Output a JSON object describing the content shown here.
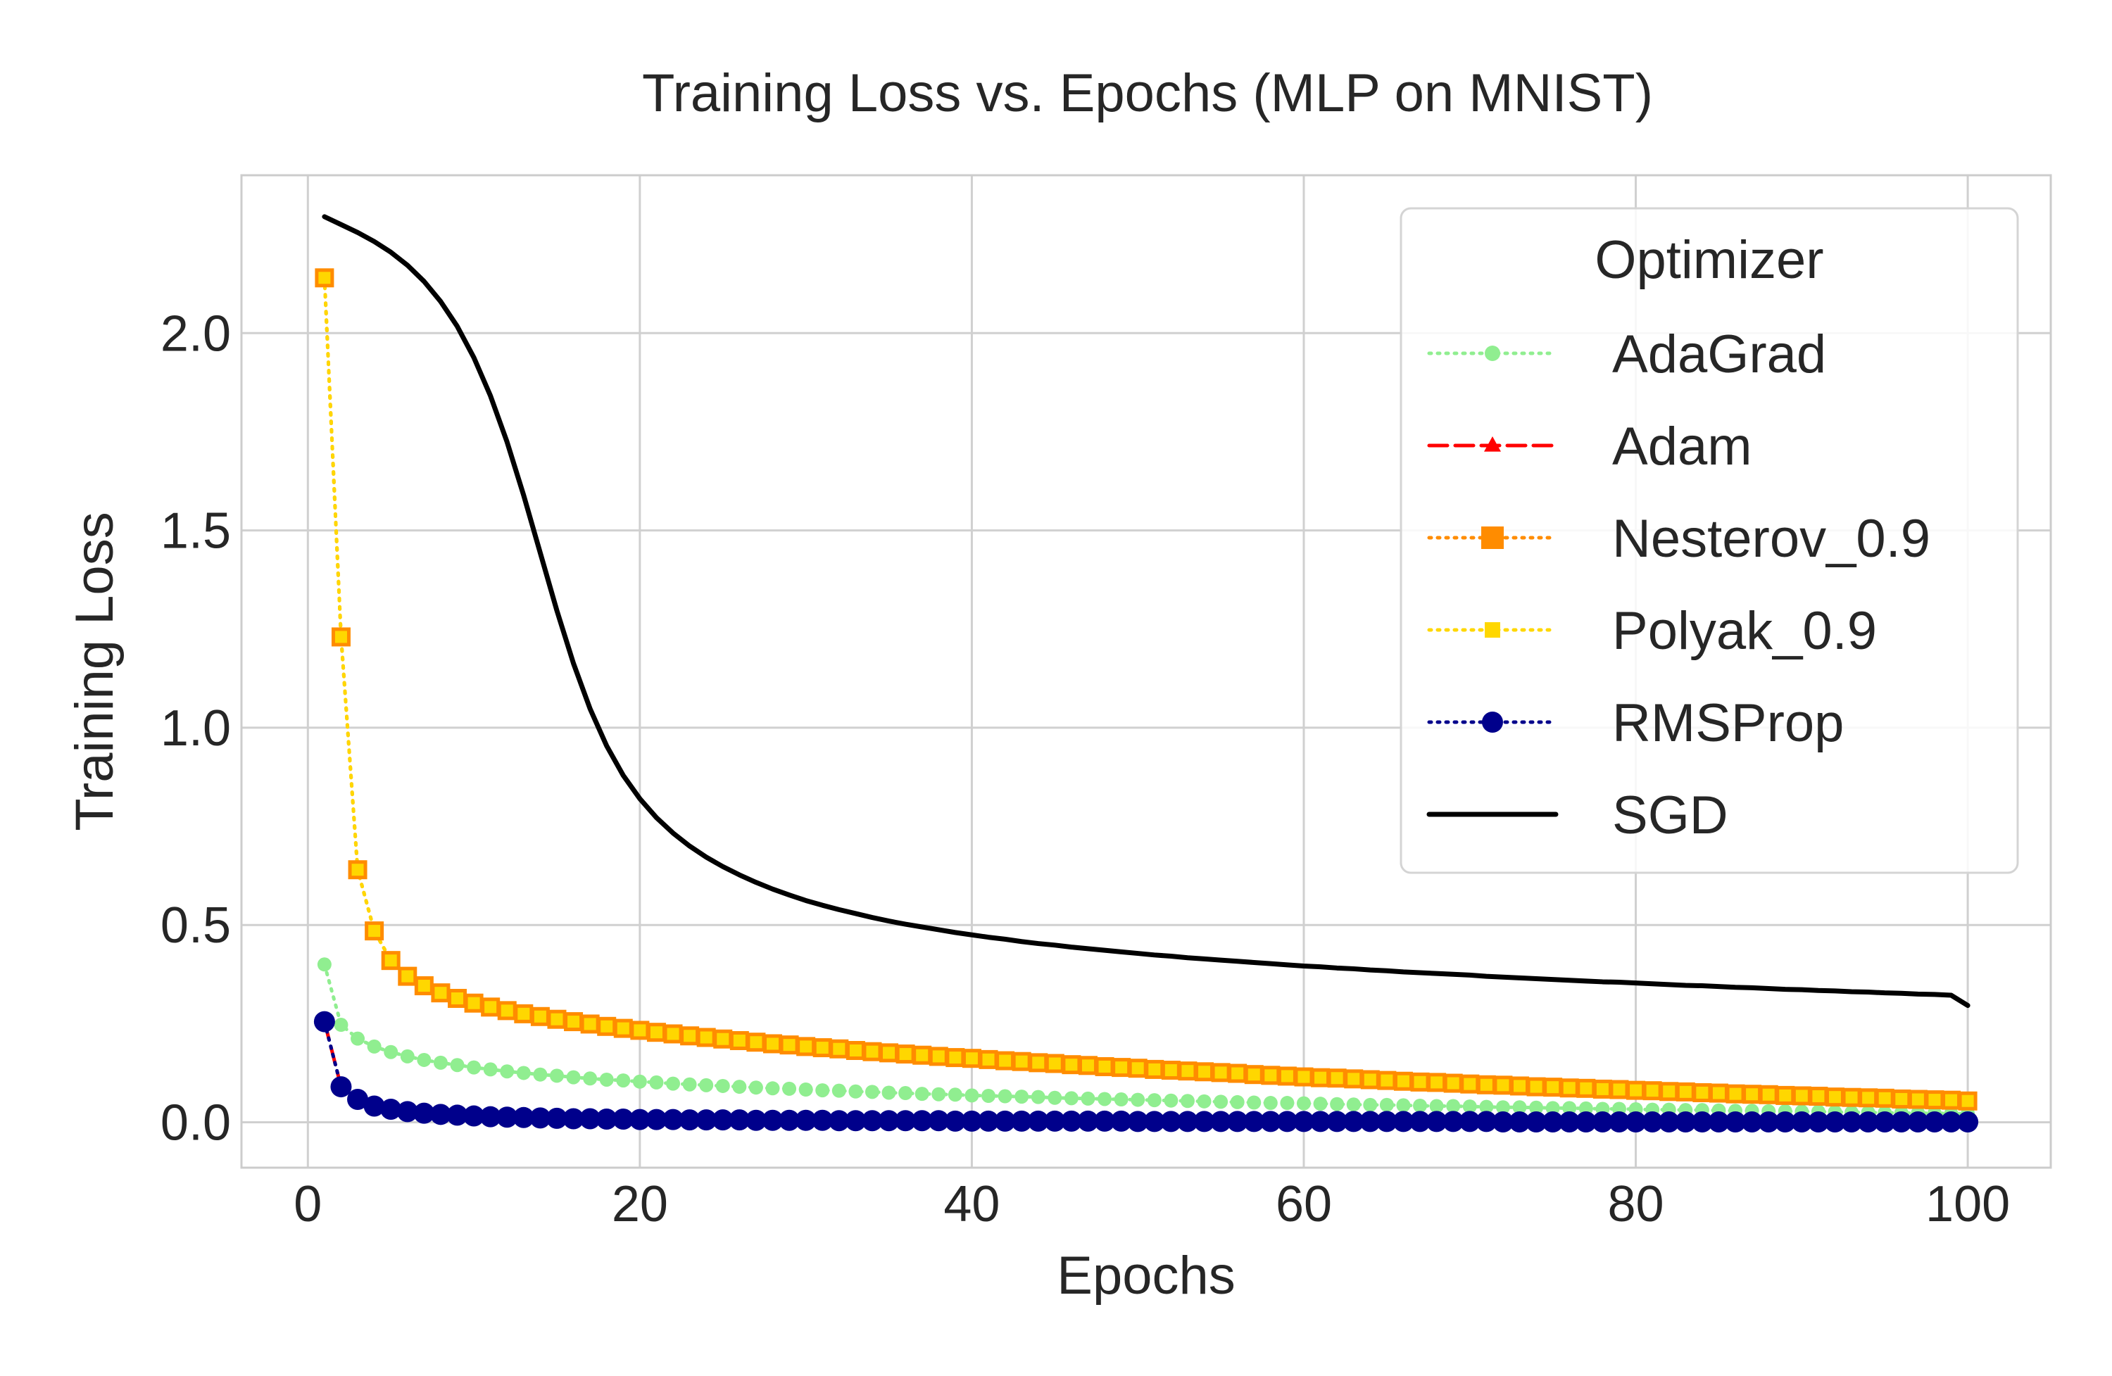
{
  "chart_data": {
    "type": "line",
    "title": "Training Loss vs. Epochs (MLP on MNIST)",
    "xlabel": "Epochs",
    "ylabel": "Training Loss",
    "xlim": [
      -4,
      105
    ],
    "ylim": [
      -0.115,
      2.4
    ],
    "xticks": [
      0,
      20,
      40,
      60,
      80,
      100
    ],
    "yticks": [
      0.0,
      0.5,
      1.0,
      1.5,
      2.0
    ],
    "xtick_labels": [
      "0",
      "20",
      "40",
      "60",
      "80",
      "100"
    ],
    "ytick_labels": [
      "0.0",
      "0.5",
      "1.0",
      "1.5",
      "2.0"
    ],
    "grid": true,
    "legend": {
      "title": "Optimizer",
      "placement": "upper right"
    },
    "x": [
      1,
      2,
      3,
      4,
      5,
      6,
      7,
      8,
      9,
      10,
      11,
      12,
      13,
      14,
      15,
      16,
      17,
      18,
      19,
      20,
      21,
      22,
      23,
      24,
      25,
      26,
      27,
      28,
      29,
      30,
      31,
      32,
      33,
      34,
      35,
      36,
      37,
      38,
      39,
      40,
      41,
      42,
      43,
      44,
      45,
      46,
      47,
      48,
      49,
      50,
      51,
      52,
      53,
      54,
      55,
      56,
      57,
      58,
      59,
      60,
      61,
      62,
      63,
      64,
      65,
      66,
      67,
      68,
      69,
      70,
      71,
      72,
      73,
      74,
      75,
      76,
      77,
      78,
      79,
      80,
      81,
      82,
      83,
      84,
      85,
      86,
      87,
      88,
      89,
      90,
      91,
      92,
      93,
      94,
      95,
      96,
      97,
      98,
      99,
      100
    ],
    "series": [
      {
        "name": "AdaGrad",
        "color": "#90ee90",
        "linestyle": "dotted",
        "marker": "circle",
        "draw_order": 1,
        "values": [
          0.4,
          0.247,
          0.212,
          0.192,
          0.178,
          0.167,
          0.158,
          0.151,
          0.145,
          0.139,
          0.134,
          0.129,
          0.125,
          0.121,
          0.118,
          0.114,
          0.111,
          0.108,
          0.106,
          0.103,
          0.101,
          0.098,
          0.096,
          0.094,
          0.092,
          0.09,
          0.088,
          0.086,
          0.085,
          0.083,
          0.081,
          0.08,
          0.078,
          0.077,
          0.075,
          0.074,
          0.072,
          0.071,
          0.07,
          0.068,
          0.067,
          0.066,
          0.065,
          0.064,
          0.062,
          0.061,
          0.06,
          0.059,
          0.058,
          0.057,
          0.056,
          0.055,
          0.054,
          0.053,
          0.052,
          0.051,
          0.05,
          0.049,
          0.049,
          0.048,
          0.047,
          0.046,
          0.045,
          0.044,
          0.044,
          0.043,
          0.042,
          0.041,
          0.041,
          0.04,
          0.039,
          0.038,
          0.038,
          0.037,
          0.036,
          0.036,
          0.035,
          0.034,
          0.034,
          0.033,
          0.032,
          0.032,
          0.031,
          0.031,
          0.03,
          0.029,
          0.029,
          0.028,
          0.028,
          0.027,
          0.027,
          0.026,
          0.025,
          0.025,
          0.024,
          0.024,
          0.023,
          0.023,
          0.022,
          0.022
        ]
      },
      {
        "name": "Nesterov_0.9",
        "color": "#ff8c00",
        "linestyle": "dotted",
        "marker": "square",
        "draw_order": 2,
        "values": [
          2.14,
          1.23,
          0.64,
          0.485,
          0.41,
          0.37,
          0.346,
          0.328,
          0.314,
          0.302,
          0.292,
          0.283,
          0.275,
          0.268,
          0.261,
          0.255,
          0.249,
          0.243,
          0.238,
          0.233,
          0.228,
          0.224,
          0.219,
          0.215,
          0.211,
          0.207,
          0.203,
          0.199,
          0.196,
          0.192,
          0.189,
          0.186,
          0.182,
          0.179,
          0.176,
          0.173,
          0.17,
          0.167,
          0.164,
          0.162,
          0.159,
          0.156,
          0.154,
          0.151,
          0.149,
          0.146,
          0.144,
          0.141,
          0.139,
          0.137,
          0.134,
          0.132,
          0.13,
          0.128,
          0.126,
          0.124,
          0.121,
          0.119,
          0.117,
          0.115,
          0.113,
          0.112,
          0.11,
          0.108,
          0.106,
          0.104,
          0.102,
          0.101,
          0.099,
          0.097,
          0.095,
          0.094,
          0.092,
          0.09,
          0.089,
          0.087,
          0.086,
          0.084,
          0.083,
          0.081,
          0.08,
          0.078,
          0.077,
          0.075,
          0.074,
          0.072,
          0.071,
          0.07,
          0.068,
          0.067,
          0.066,
          0.064,
          0.063,
          0.062,
          0.061,
          0.059,
          0.058,
          0.057,
          0.056,
          0.054
        ]
      },
      {
        "name": "Polyak_0.9",
        "color": "#ffd700",
        "linestyle": "dotted",
        "marker": "square",
        "draw_order": 3,
        "values": [
          2.14,
          1.23,
          0.64,
          0.485,
          0.41,
          0.37,
          0.346,
          0.328,
          0.314,
          0.302,
          0.292,
          0.283,
          0.275,
          0.268,
          0.261,
          0.255,
          0.249,
          0.243,
          0.238,
          0.233,
          0.228,
          0.224,
          0.219,
          0.215,
          0.211,
          0.207,
          0.203,
          0.199,
          0.196,
          0.192,
          0.189,
          0.186,
          0.182,
          0.179,
          0.176,
          0.173,
          0.17,
          0.167,
          0.164,
          0.162,
          0.159,
          0.156,
          0.154,
          0.151,
          0.149,
          0.146,
          0.144,
          0.141,
          0.139,
          0.137,
          0.134,
          0.132,
          0.13,
          0.128,
          0.126,
          0.124,
          0.121,
          0.119,
          0.117,
          0.115,
          0.113,
          0.112,
          0.11,
          0.108,
          0.106,
          0.104,
          0.102,
          0.101,
          0.099,
          0.097,
          0.095,
          0.094,
          0.092,
          0.09,
          0.089,
          0.087,
          0.086,
          0.084,
          0.083,
          0.081,
          0.08,
          0.078,
          0.077,
          0.075,
          0.074,
          0.072,
          0.071,
          0.07,
          0.068,
          0.067,
          0.066,
          0.064,
          0.063,
          0.062,
          0.061,
          0.059,
          0.058,
          0.057,
          0.056,
          0.054
        ]
      },
      {
        "name": "Adam",
        "color": "#ff0000",
        "linestyle": "dashed",
        "marker": "triangle",
        "draw_order": 4,
        "values": [
          0.255,
          0.09,
          0.058,
          0.041,
          0.033,
          0.027,
          0.023,
          0.02,
          0.018,
          0.016,
          0.014,
          0.013,
          0.012,
          0.011,
          0.01,
          0.009,
          0.009,
          0.008,
          0.008,
          0.007,
          0.007,
          0.007,
          0.006,
          0.006,
          0.006,
          0.006,
          0.005,
          0.005,
          0.005,
          0.005,
          0.005,
          0.004,
          0.004,
          0.004,
          0.004,
          0.004,
          0.004,
          0.004,
          0.003,
          0.003,
          0.003,
          0.003,
          0.003,
          0.003,
          0.003,
          0.003,
          0.003,
          0.003,
          0.003,
          0.002,
          0.002,
          0.002,
          0.002,
          0.002,
          0.002,
          0.002,
          0.002,
          0.002,
          0.002,
          0.002,
          0.002,
          0.002,
          0.002,
          0.002,
          0.002,
          0.002,
          0.002,
          0.002,
          0.002,
          0.002,
          0.002,
          0.001,
          0.001,
          0.001,
          0.001,
          0.001,
          0.001,
          0.001,
          0.001,
          0.001,
          0.001,
          0.001,
          0.001,
          0.001,
          0.001,
          0.001,
          0.001,
          0.001,
          0.001,
          0.001,
          0.001,
          0.001,
          0.001,
          0.001,
          0.001,
          0.001,
          0.001,
          0.001,
          0.001,
          0.001
        ]
      },
      {
        "name": "RMSProp",
        "color": "#00008b",
        "linestyle": "dotted",
        "marker": "circle",
        "draw_order": 5,
        "values": [
          0.255,
          0.09,
          0.058,
          0.041,
          0.033,
          0.027,
          0.023,
          0.02,
          0.018,
          0.016,
          0.014,
          0.013,
          0.012,
          0.011,
          0.01,
          0.009,
          0.009,
          0.008,
          0.008,
          0.007,
          0.007,
          0.007,
          0.006,
          0.006,
          0.006,
          0.006,
          0.005,
          0.005,
          0.005,
          0.005,
          0.005,
          0.004,
          0.004,
          0.004,
          0.004,
          0.004,
          0.004,
          0.004,
          0.003,
          0.003,
          0.003,
          0.003,
          0.003,
          0.003,
          0.003,
          0.003,
          0.003,
          0.003,
          0.003,
          0.002,
          0.002,
          0.002,
          0.002,
          0.002,
          0.002,
          0.002,
          0.002,
          0.002,
          0.002,
          0.002,
          0.002,
          0.002,
          0.002,
          0.002,
          0.002,
          0.002,
          0.002,
          0.002,
          0.002,
          0.002,
          0.002,
          0.001,
          0.001,
          0.001,
          0.001,
          0.001,
          0.001,
          0.001,
          0.001,
          0.001,
          0.001,
          0.001,
          0.001,
          0.001,
          0.001,
          0.001,
          0.001,
          0.001,
          0.001,
          0.001,
          0.001,
          0.001,
          0.001,
          0.001,
          0.001,
          0.001,
          0.001,
          0.001,
          0.001,
          0.001
        ]
      },
      {
        "name": "SGD",
        "color": "#000000",
        "linestyle": "solid",
        "marker": "none",
        "draw_order": 6,
        "values": [
          2.295,
          2.275,
          2.255,
          2.232,
          2.205,
          2.172,
          2.131,
          2.08,
          2.017,
          1.938,
          1.841,
          1.724,
          1.589,
          1.443,
          1.297,
          1.163,
          1.048,
          0.954,
          0.879,
          0.82,
          0.772,
          0.733,
          0.7,
          0.672,
          0.648,
          0.627,
          0.608,
          0.591,
          0.576,
          0.562,
          0.55,
          0.539,
          0.529,
          0.519,
          0.51,
          0.502,
          0.495,
          0.488,
          0.481,
          0.475,
          0.469,
          0.464,
          0.458,
          0.453,
          0.449,
          0.444,
          0.44,
          0.436,
          0.432,
          0.428,
          0.424,
          0.421,
          0.417,
          0.414,
          0.411,
          0.408,
          0.405,
          0.402,
          0.399,
          0.396,
          0.394,
          0.391,
          0.389,
          0.386,
          0.384,
          0.381,
          0.379,
          0.377,
          0.375,
          0.373,
          0.37,
          0.368,
          0.366,
          0.364,
          0.362,
          0.36,
          0.358,
          0.356,
          0.355,
          0.353,
          0.351,
          0.349,
          0.347,
          0.346,
          0.344,
          0.342,
          0.341,
          0.339,
          0.337,
          0.336,
          0.334,
          0.333,
          0.331,
          0.33,
          0.328,
          0.327,
          0.325,
          0.324,
          0.322,
          0.296
        ]
      }
    ]
  }
}
